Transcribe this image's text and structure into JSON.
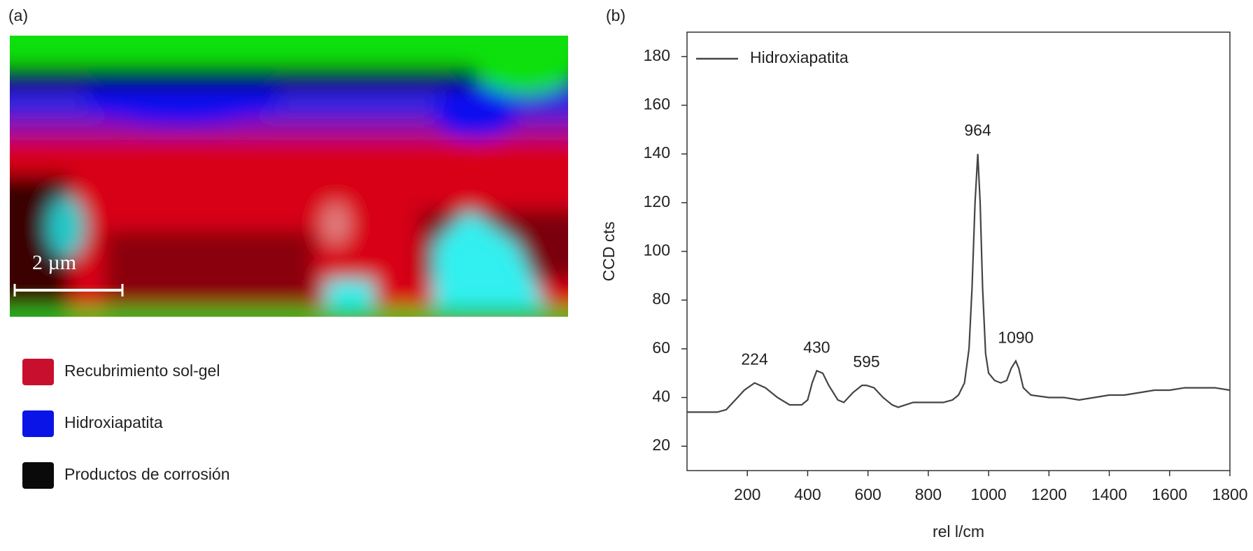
{
  "panel_a": {
    "label": "(a)",
    "scale_bar": "2 µm",
    "legend": [
      {
        "name": "Recubrimiento sol-gel",
        "color": "#c8102e"
      },
      {
        "name": "Hidroxiapatita",
        "color": "#0a14e6"
      },
      {
        "name": "Productos de corrosión",
        "color": "#0a0a0a"
      }
    ]
  },
  "chart_data": {
    "type": "line",
    "panel_label": "(b)",
    "x_label": "rel l/cm",
    "y_label": "CCD cts",
    "xlim": [
      0,
      1800
    ],
    "xticks": [
      200,
      400,
      600,
      800,
      1000,
      1200,
      1400,
      1600,
      1800
    ],
    "ylim": [
      10,
      190
    ],
    "yticks": [
      20,
      40,
      60,
      80,
      100,
      120,
      140,
      160,
      180
    ],
    "legend": "upper left",
    "x": [
      0,
      50,
      100,
      130,
      160,
      190,
      224,
      260,
      300,
      340,
      380,
      400,
      415,
      430,
      450,
      470,
      500,
      520,
      550,
      580,
      595,
      620,
      650,
      680,
      700,
      750,
      800,
      850,
      880,
      900,
      920,
      935,
      945,
      955,
      964,
      972,
      980,
      990,
      1000,
      1020,
      1040,
      1060,
      1075,
      1090,
      1100,
      1115,
      1140,
      1200,
      1250,
      1300,
      1350,
      1400,
      1450,
      1500,
      1550,
      1600,
      1650,
      1700,
      1750,
      1800
    ],
    "series": [
      {
        "name": "Hidroxiapatita",
        "color": "#444444",
        "values": [
          34,
          34,
          34,
          35,
          39,
          43,
          46,
          44,
          40,
          37,
          37,
          39,
          46,
          51,
          50,
          45,
          39,
          38,
          42,
          45,
          45,
          44,
          40,
          37,
          36,
          38,
          38,
          38,
          39,
          41,
          46,
          60,
          85,
          120,
          140,
          120,
          85,
          58,
          50,
          47,
          46,
          47,
          52,
          55,
          52,
          44,
          41,
          40,
          40,
          39,
          40,
          41,
          41,
          42,
          43,
          43,
          44,
          44,
          44,
          43
        ]
      }
    ],
    "annotations": [
      {
        "text": "224",
        "x": 224
      },
      {
        "text": "430",
        "x": 430
      },
      {
        "text": "595",
        "x": 595
      },
      {
        "text": "964",
        "x": 964
      },
      {
        "text": "1090",
        "x": 1090
      }
    ]
  }
}
